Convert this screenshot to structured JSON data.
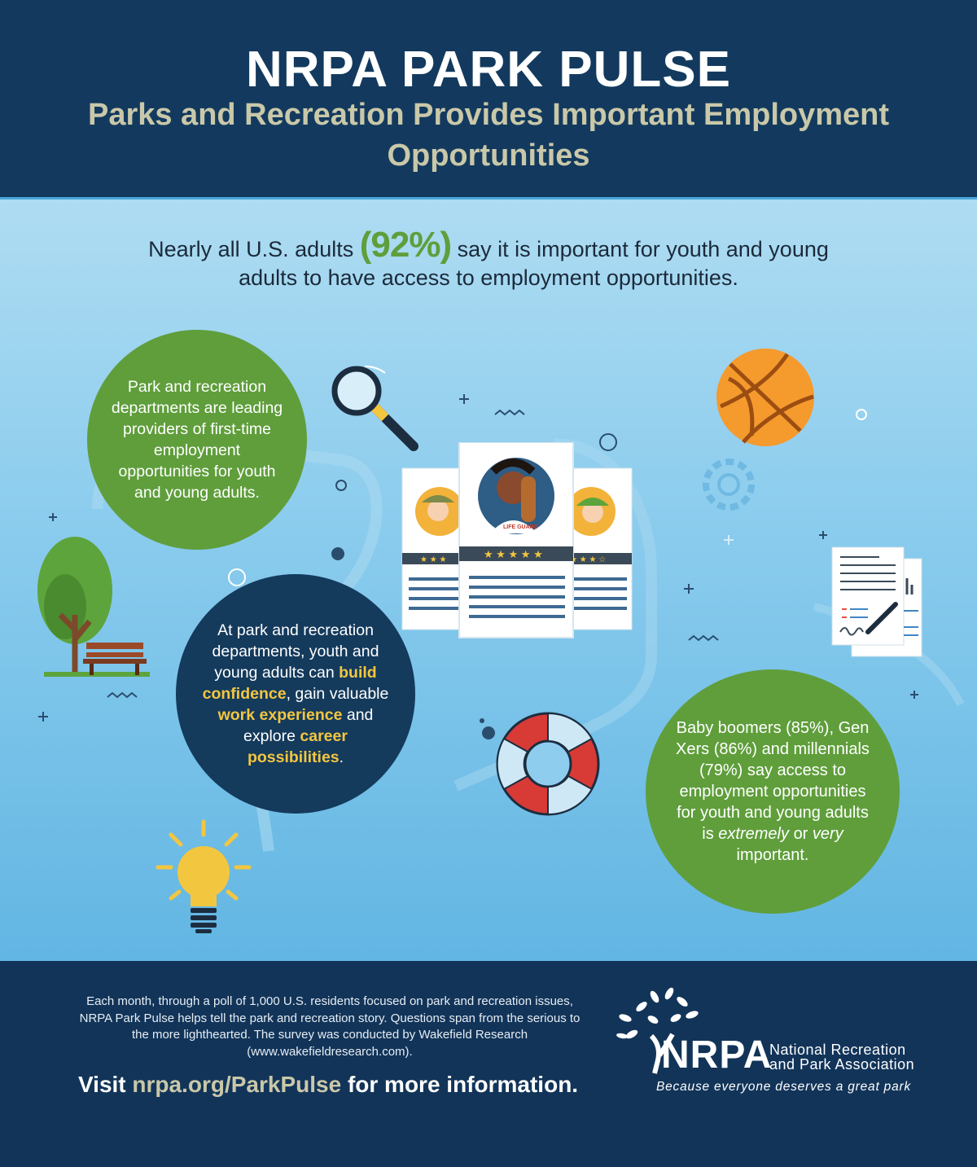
{
  "header": {
    "title": "NRPA PARK PULSE",
    "subtitle": "Parks and Recreation Provides Important Employment Opportunities"
  },
  "intro": {
    "before": "Nearly all U.S. adults",
    "stat": "(92%)",
    "after": "say it is important for youth and young adults to have access to employment opportunities."
  },
  "circle1": {
    "text": "Park and recreation departments are leading providers of first-time employment opportunities for youth and young adults."
  },
  "circle2": {
    "p1": "At park and recreation departments, youth and young adults can",
    "h1": "build confidence",
    "p2": ", gain valuable",
    "h2": "work experience",
    "p3": "and explore",
    "h3": "career possibilities",
    "p4": "."
  },
  "circle3": {
    "p1": "Baby boomers (85%), Gen Xers (86%) and millennials (79%) say access to employment opportunities for youth and young adults is",
    "em1": "extremely",
    "p2": "or",
    "em2": "very",
    "p3": "important."
  },
  "cards": {
    "center_shirt": "LIFE GUARD"
  },
  "footer": {
    "note": "Each month, through a poll of 1,000 U.S. residents focused on park and recreation issues, NRPA Park Pulse helps tell the park and recreation story. Questions span from the serious to the more lighthearted. The survey was conducted by Wakefield Research (www.wakefieldresearch.com).",
    "visit_prefix": "Visit",
    "visit_url": "nrpa.org/ParkPulse",
    "visit_suffix": "for more information.",
    "logo_word": "NRPA",
    "org_line1": "National Recreation",
    "org_line2": "and Park Association",
    "tagline": "Because everyone deserves a great park"
  },
  "icons": [
    "magnifier-icon",
    "basketball-icon",
    "tree-icon",
    "bench-icon",
    "gear-icon",
    "document-icon",
    "pen-icon",
    "life-ring-icon",
    "lightbulb-icon",
    "resume-card-icon",
    "tree-logo-icon"
  ],
  "colors": {
    "navy": "#133a5e",
    "green": "#5f9e3b",
    "sky": "#89cbed",
    "gold": "#f3c640",
    "khaki": "#c9c8a9"
  }
}
